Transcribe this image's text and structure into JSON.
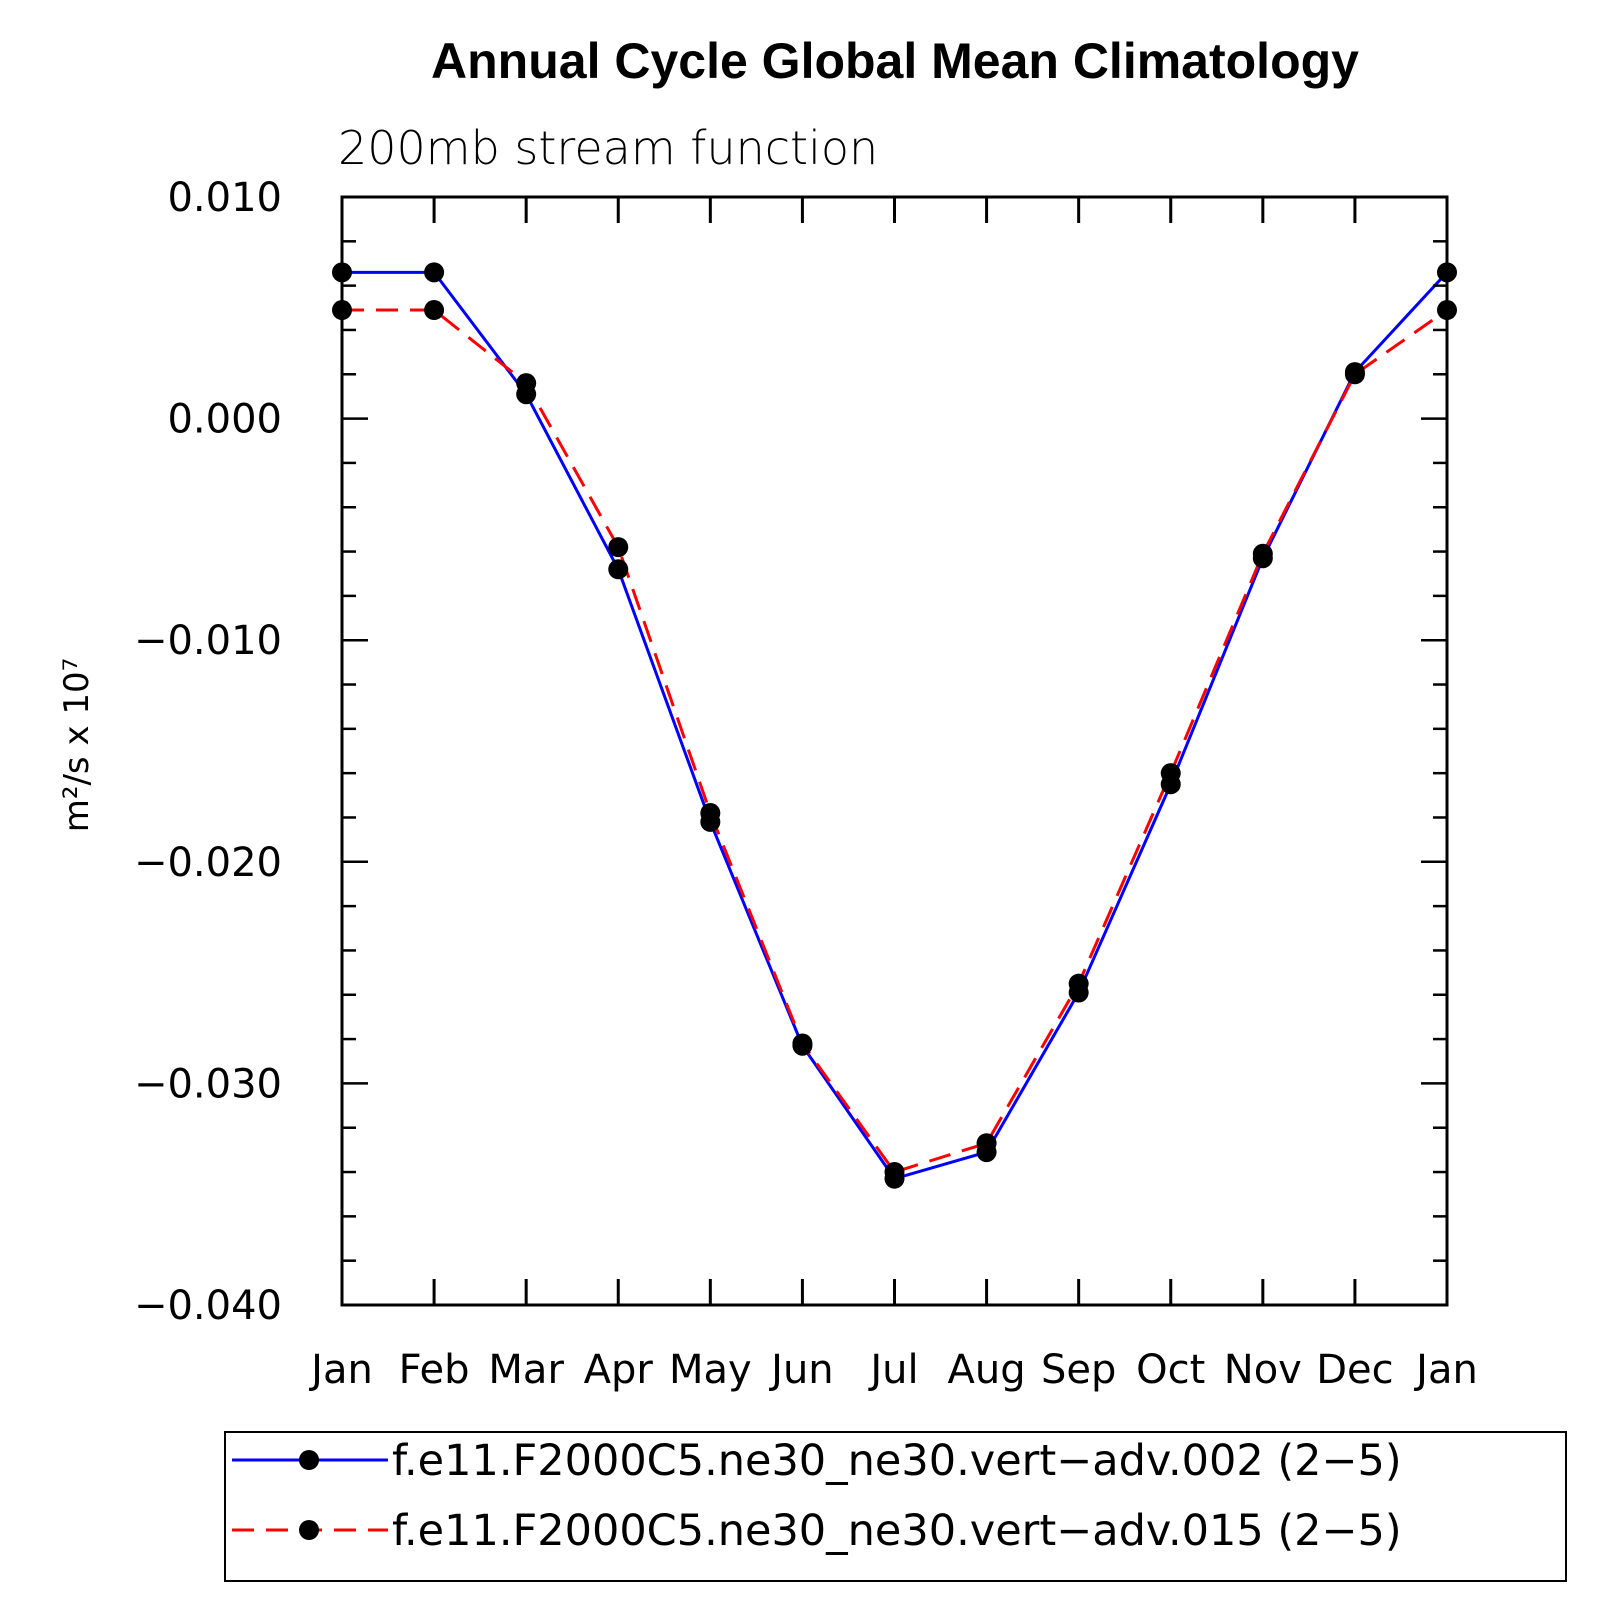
{
  "chart_data": {
    "type": "line",
    "title": "Annual Cycle Global Mean Climatology",
    "subtitle": "200mb stream function",
    "ylabel": "m²/s x 10⁷",
    "xlabel": "",
    "ylim": [
      -0.04,
      0.01
    ],
    "yticks": [
      0.01,
      0.0,
      -0.01,
      -0.02,
      -0.03,
      -0.04
    ],
    "ytick_labels": [
      "0.010",
      "0.000",
      "−0.010",
      "−0.020",
      "−0.030",
      "−0.040"
    ],
    "categories": [
      "Jan",
      "Feb",
      "Mar",
      "Apr",
      "May",
      "Jun",
      "Jul",
      "Aug",
      "Sep",
      "Oct",
      "Nov",
      "Dec",
      "Jan"
    ],
    "grid": false,
    "legend_position": "bottom",
    "series": [
      {
        "name": "f.e11.F2000C5.ne30_ne30.vert−adv.002 (2−5)",
        "color": "#0000ff",
        "style": "solid",
        "marker": "circle",
        "values": [
          0.0066,
          0.0066,
          0.0011,
          -0.0068,
          -0.0182,
          -0.0283,
          -0.0343,
          -0.0331,
          -0.0259,
          -0.0165,
          -0.0063,
          0.0021,
          0.0066
        ]
      },
      {
        "name": "f.e11.F2000C5.ne30_ne30.vert−adv.015 (2−5)",
        "color": "#ff0000",
        "style": "dashed",
        "marker": "circle",
        "values": [
          0.0049,
          0.0049,
          0.0016,
          -0.0058,
          -0.0178,
          -0.0282,
          -0.034,
          -0.0327,
          -0.0255,
          -0.016,
          -0.0061,
          0.002,
          0.0049
        ]
      }
    ]
  }
}
